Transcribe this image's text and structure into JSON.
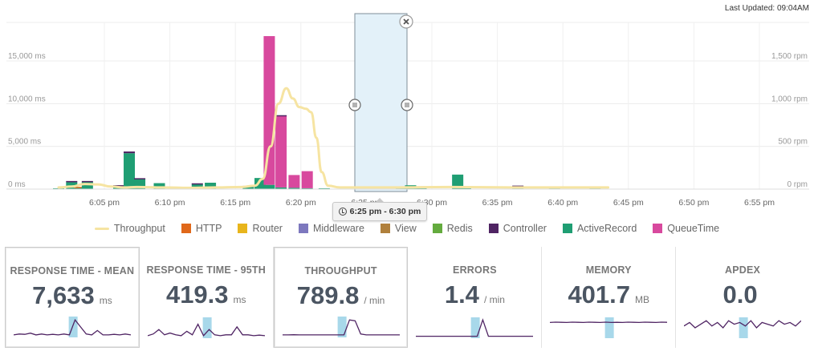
{
  "header": {
    "last_updated": "Last Updated: 09:04AM"
  },
  "chart_data": {
    "type": "bar",
    "y_left": {
      "ticks": [
        "0 ms",
        "5,000 ms",
        "10,000 ms",
        "15,000 ms"
      ],
      "values": [
        0,
        5000,
        10000,
        15000
      ],
      "max": 19500
    },
    "y_right": {
      "ticks": [
        "0 rpm",
        "500 rpm",
        "1,000 rpm",
        "1,500 rpm"
      ]
    },
    "x_ticks": [
      "6:05 pm",
      "6:10 pm",
      "6:15 pm",
      "6:20 pm",
      "6:25 pm",
      "6:30 pm",
      "6:35 pm",
      "6:40 pm",
      "6:45 pm",
      "6:50 pm",
      "6:55 pm"
    ],
    "series_colors": {
      "Throughput": "#f6e4a2",
      "HTTP": "#e0681a",
      "Router": "#e8b51c",
      "Middleware": "#7d78be",
      "View": "#b0803c",
      "Redis": "#64ab3e",
      "Controller": "#4f2463",
      "ActiveRecord": "#1f9e73",
      "QueueTime": "#d8499e"
    },
    "bars": [
      {
        "t": 0.0,
        "ar": 100
      },
      {
        "t": 1.0,
        "ar": 800,
        "ctrl": 150
      },
      {
        "t": 1.6,
        "ar": 200,
        "http": 60
      },
      {
        "t": 2.2,
        "ar": 850,
        "ctrl": 100
      },
      {
        "t": 4.6,
        "ar": 400,
        "ctrl": 60
      },
      {
        "t": 5.4,
        "ar": 4200,
        "ctrl": 200
      },
      {
        "t": 6.2,
        "ar": 1200,
        "ctrl": 80
      },
      {
        "t": 7.7,
        "ar": 700
      },
      {
        "t": 10.6,
        "ar": 600,
        "ctrl": 80
      },
      {
        "t": 11.6,
        "ar": 750
      },
      {
        "t": 14.5,
        "ar": 300,
        "ctrl": 80
      },
      {
        "t": 15.4,
        "ar": 1300
      },
      {
        "t": 16.1,
        "ar": 500,
        "qt": 17400
      },
      {
        "t": 17.0,
        "ar": 200,
        "qt": 8400,
        "ctrl": 50
      },
      {
        "t": 18.0,
        "ar": 150,
        "qt": 1500
      },
      {
        "t": 19.0,
        "ar": 100,
        "qt": 2000
      },
      {
        "t": 20.3,
        "ar": 100
      },
      {
        "t": 26.2,
        "ar": 200
      },
      {
        "t": 26.9,
        "ar": 450
      },
      {
        "t": 27.7,
        "ar": 120
      },
      {
        "t": 30.5,
        "ar": 1700
      },
      {
        "t": 31.1,
        "ar": 150
      },
      {
        "t": 35.1,
        "ar": 350,
        "ctrl": 60
      },
      {
        "t": 37.9,
        "ar": 120
      },
      {
        "t": 41.0,
        "ar": 150
      }
    ],
    "throughput": [
      [
        0,
        20
      ],
      [
        1,
        30
      ],
      [
        2,
        60
      ],
      [
        3,
        55
      ],
      [
        4,
        30
      ],
      [
        5,
        20
      ],
      [
        6,
        25
      ],
      [
        8,
        20
      ],
      [
        10,
        15
      ],
      [
        12,
        20
      ],
      [
        14,
        25
      ],
      [
        15,
        40
      ],
      [
        15.6,
        120
      ],
      [
        16.2,
        500
      ],
      [
        16.8,
        1000
      ],
      [
        17.4,
        1180
      ],
      [
        17.9,
        1060
      ],
      [
        18.4,
        960
      ],
      [
        18.9,
        940
      ],
      [
        19.3,
        900
      ],
      [
        19.7,
        600
      ],
      [
        20.1,
        200
      ],
      [
        20.6,
        40
      ],
      [
        21.5,
        20
      ],
      [
        25,
        20
      ],
      [
        30,
        25
      ],
      [
        35,
        20
      ],
      [
        40,
        20
      ],
      [
        42,
        20
      ]
    ],
    "selection": {
      "label": "6:25 pm - 6:30 pm"
    }
  },
  "legend": [
    {
      "label": "Throughput",
      "type": "line",
      "color": "#f6e4a2"
    },
    {
      "label": "HTTP",
      "type": "sq",
      "color": "#e0681a"
    },
    {
      "label": "Router",
      "type": "sq",
      "color": "#e8b51c"
    },
    {
      "label": "Middleware",
      "type": "sq",
      "color": "#7d78be"
    },
    {
      "label": "View",
      "type": "sq",
      "color": "#b0803c"
    },
    {
      "label": "Redis",
      "type": "sq",
      "color": "#64ab3e"
    },
    {
      "label": "Controller",
      "type": "sq",
      "color": "#4f2463"
    },
    {
      "label": "ActiveRecord",
      "type": "sq",
      "color": "#1f9e73"
    },
    {
      "label": "QueueTime",
      "type": "sq",
      "color": "#d8499e"
    }
  ],
  "panels": [
    {
      "title": "RESPONSE TIME - MEAN",
      "value": "7,633",
      "unit": "ms",
      "selected": true,
      "spark": [
        0.05,
        0.1,
        0.08,
        0.15,
        0.05,
        0.1,
        0.05,
        0.08,
        0.05,
        0.1,
        0.05,
        0.9,
        0.5,
        0.1,
        0.05,
        0.3,
        0.05,
        0.05,
        0.08,
        0.05,
        0.1,
        0.05
      ]
    },
    {
      "title": "RESPONSE TIME - 95TH",
      "value": "419.3",
      "unit": "ms",
      "selected": false,
      "spark": [
        0.05,
        0.15,
        0.4,
        0.1,
        0.2,
        0.1,
        0.05,
        0.3,
        0.1,
        0.7,
        0.05,
        0.4,
        0.1,
        0.05,
        0.1,
        0.1,
        0.55,
        0.1,
        0.1,
        0.05,
        0.08,
        0.05
      ]
    },
    {
      "title": "THROUGHPUT",
      "value": "789.8",
      "unit": "/ min",
      "selected": true,
      "spark": [
        0.05,
        0.05,
        0.06,
        0.05,
        0.05,
        0.05,
        0.05,
        0.05,
        0.05,
        0.05,
        0.05,
        0.05,
        0.9,
        0.85,
        0.1,
        0.05,
        0.05,
        0.05,
        0.05,
        0.05,
        0.05,
        0.05
      ]
    },
    {
      "title": "ERRORS",
      "value": "1.4",
      "unit": "/ min",
      "selected": false,
      "spark": [
        0.02,
        0.02,
        0.02,
        0.02,
        0.02,
        0.02,
        0.02,
        0.02,
        0.02,
        0.02,
        0.02,
        0.02,
        0.95,
        0.02,
        0.02,
        0.02,
        0.02,
        0.02,
        0.02,
        0.02,
        0.02,
        0.02
      ]
    },
    {
      "title": "MEMORY",
      "value": "401.7",
      "unit": "MB",
      "selected": false,
      "spark": [
        0.8,
        0.82,
        0.81,
        0.8,
        0.82,
        0.81,
        0.8,
        0.82,
        0.81,
        0.8,
        0.82,
        0.8,
        0.81,
        0.8,
        0.82,
        0.81,
        0.8,
        0.82,
        0.81,
        0.8,
        0.82,
        0.81
      ]
    },
    {
      "title": "APDEX",
      "value": "0.0",
      "unit": "",
      "selected": false,
      "spark": [
        0.6,
        0.8,
        0.5,
        0.7,
        0.9,
        0.6,
        0.8,
        0.5,
        0.9,
        0.7,
        0.8,
        0.6,
        0.9,
        0.5,
        0.8,
        0.7,
        0.6,
        0.9,
        0.7,
        0.8,
        0.6,
        0.9
      ]
    }
  ]
}
